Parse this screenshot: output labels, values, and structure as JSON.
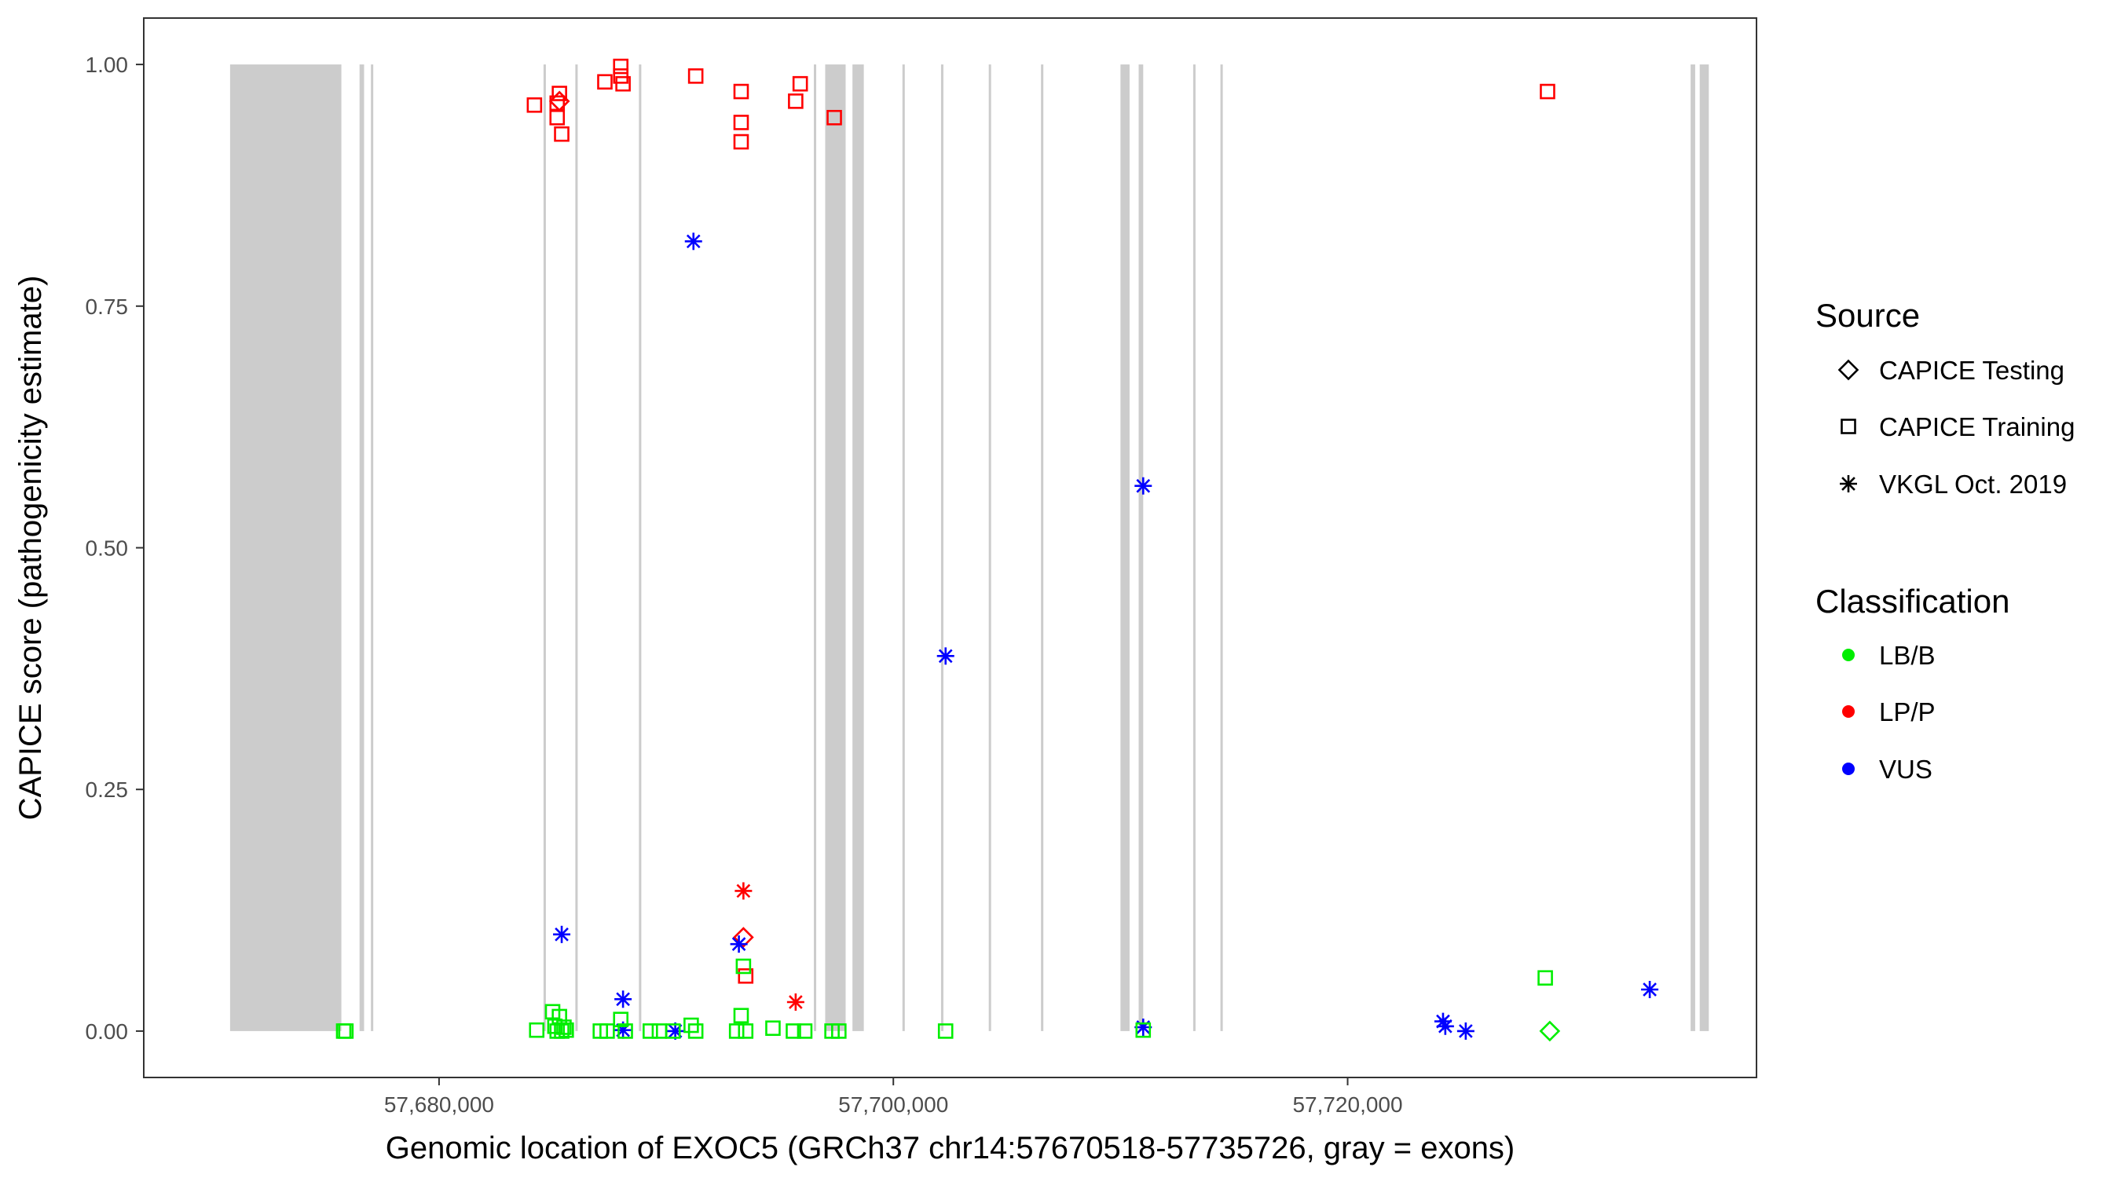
{
  "chart_data": {
    "type": "scatter",
    "title": "",
    "xlabel": "Genomic location of EXOC5 (GRCh37 chr14:57670518-57735726, gray = exons)",
    "ylabel": "CAPICE score (pathogenicity estimate)",
    "xlim": [
      57667000,
      57738000
    ],
    "ylim": [
      -0.048,
      1.048
    ],
    "xticks": [
      57680000,
      57700000,
      57720000
    ],
    "xtick_labels": [
      "57,680,000",
      "57,700,000",
      "57,720,000"
    ],
    "yticks": [
      0,
      0.25,
      0.5,
      0.75,
      1
    ],
    "ytick_labels": [
      "0.00",
      "0.25",
      "0.50",
      "0.75",
      "1.00"
    ],
    "grid": false,
    "exon_color": "#cccccc",
    "exons": [
      [
        57670800,
        57675700
      ],
      [
        57676500,
        57676700
      ],
      [
        57677000,
        57677100
      ],
      [
        57684600,
        57684700
      ],
      [
        57686000,
        57686100
      ],
      [
        57688800,
        57688900
      ],
      [
        57696500,
        57696600
      ],
      [
        57697000,
        57697900
      ],
      [
        57698200,
        57698700
      ],
      [
        57700400,
        57700500
      ],
      [
        57702100,
        57702200
      ],
      [
        57704200,
        57704300
      ],
      [
        57706500,
        57706600
      ],
      [
        57710000,
        57710400
      ],
      [
        57710800,
        57711000
      ],
      [
        57713200,
        57713300
      ],
      [
        57714400,
        57714500
      ],
      [
        57735100,
        57735300
      ],
      [
        57735500,
        57735900
      ]
    ],
    "legend": {
      "placement": "right",
      "source": {
        "title": "Source",
        "entries": [
          {
            "label": "CAPICE Testing",
            "shape": "diamond"
          },
          {
            "label": "CAPICE Training",
            "shape": "square"
          },
          {
            "label": "VKGL Oct. 2019",
            "shape": "asterisk"
          }
        ]
      },
      "classification": {
        "title": "Classification",
        "entries": [
          {
            "label": "LB/B",
            "color": "#00ee00"
          },
          {
            "label": "LP/P",
            "color": "#ff0000"
          },
          {
            "label": "VUS",
            "color": "#0000ff"
          }
        ]
      }
    },
    "series": [
      {
        "source": "CAPICE Training",
        "classification": "LP/P",
        "x": [
          57684200,
          57685200,
          57685200,
          57685300,
          57685400,
          57687300,
          57688000,
          57688000,
          57688100,
          57691300,
          57693300,
          57693300,
          57693300,
          57693500,
          57695700,
          57695900,
          57697400,
          57728800
        ],
        "y": [
          0.958,
          0.945,
          0.96,
          0.97,
          0.928,
          0.982,
          0.998,
          0.988,
          0.98,
          0.988,
          0.972,
          0.94,
          0.92,
          0.057,
          0.962,
          0.98,
          0.945,
          0.972
        ]
      },
      {
        "source": "CAPICE Testing",
        "classification": "LP/P",
        "x": [
          57685300,
          57693400
        ],
        "y": [
          0.962,
          0.097
        ]
      },
      {
        "source": "VKGL Oct. 2019",
        "classification": "LP/P",
        "x": [
          57693400,
          57695700
        ],
        "y": [
          0.145,
          0.03
        ]
      },
      {
        "source": "VKGL Oct. 2019",
        "classification": "VUS",
        "x": [
          57691200,
          57685400,
          57688100,
          57688100,
          57690400,
          57693200,
          57702300,
          57711000,
          57711000,
          57724200,
          57724300,
          57725200,
          57733300
        ],
        "y": [
          0.817,
          0.1,
          0.033,
          0.001,
          0.0,
          0.09,
          0.388,
          0.564,
          0.004,
          0.01,
          0.005,
          0.0,
          0.043
        ]
      },
      {
        "source": "CAPICE Training",
        "classification": "LB/B",
        "x": [
          57675800,
          57675900,
          57684300,
          57685000,
          57685100,
          57685200,
          57685300,
          57685400,
          57685500,
          57685600,
          57687100,
          57687400,
          57688000,
          57688200,
          57689300,
          57689700,
          57690300,
          57691100,
          57691300,
          57693100,
          57693300,
          57693400,
          57693500,
          57694700,
          57695600,
          57696100,
          57697300,
          57697600,
          57702300,
          57711000,
          57728700
        ],
        "y": [
          0.0,
          0.0,
          0.001,
          0.02,
          0.005,
          0.0,
          0.015,
          0.0,
          0.004,
          0.001,
          0.0,
          0.0,
          0.012,
          0.0,
          0.0,
          0.0,
          0.0,
          0.006,
          0.0,
          0.0,
          0.016,
          0.067,
          0.0,
          0.003,
          0.0,
          0.0,
          0.0,
          0.0,
          0.0,
          0.001,
          0.055
        ]
      },
      {
        "source": "CAPICE Testing",
        "classification": "LB/B",
        "x": [
          57728900
        ],
        "y": [
          0.0
        ]
      }
    ]
  }
}
